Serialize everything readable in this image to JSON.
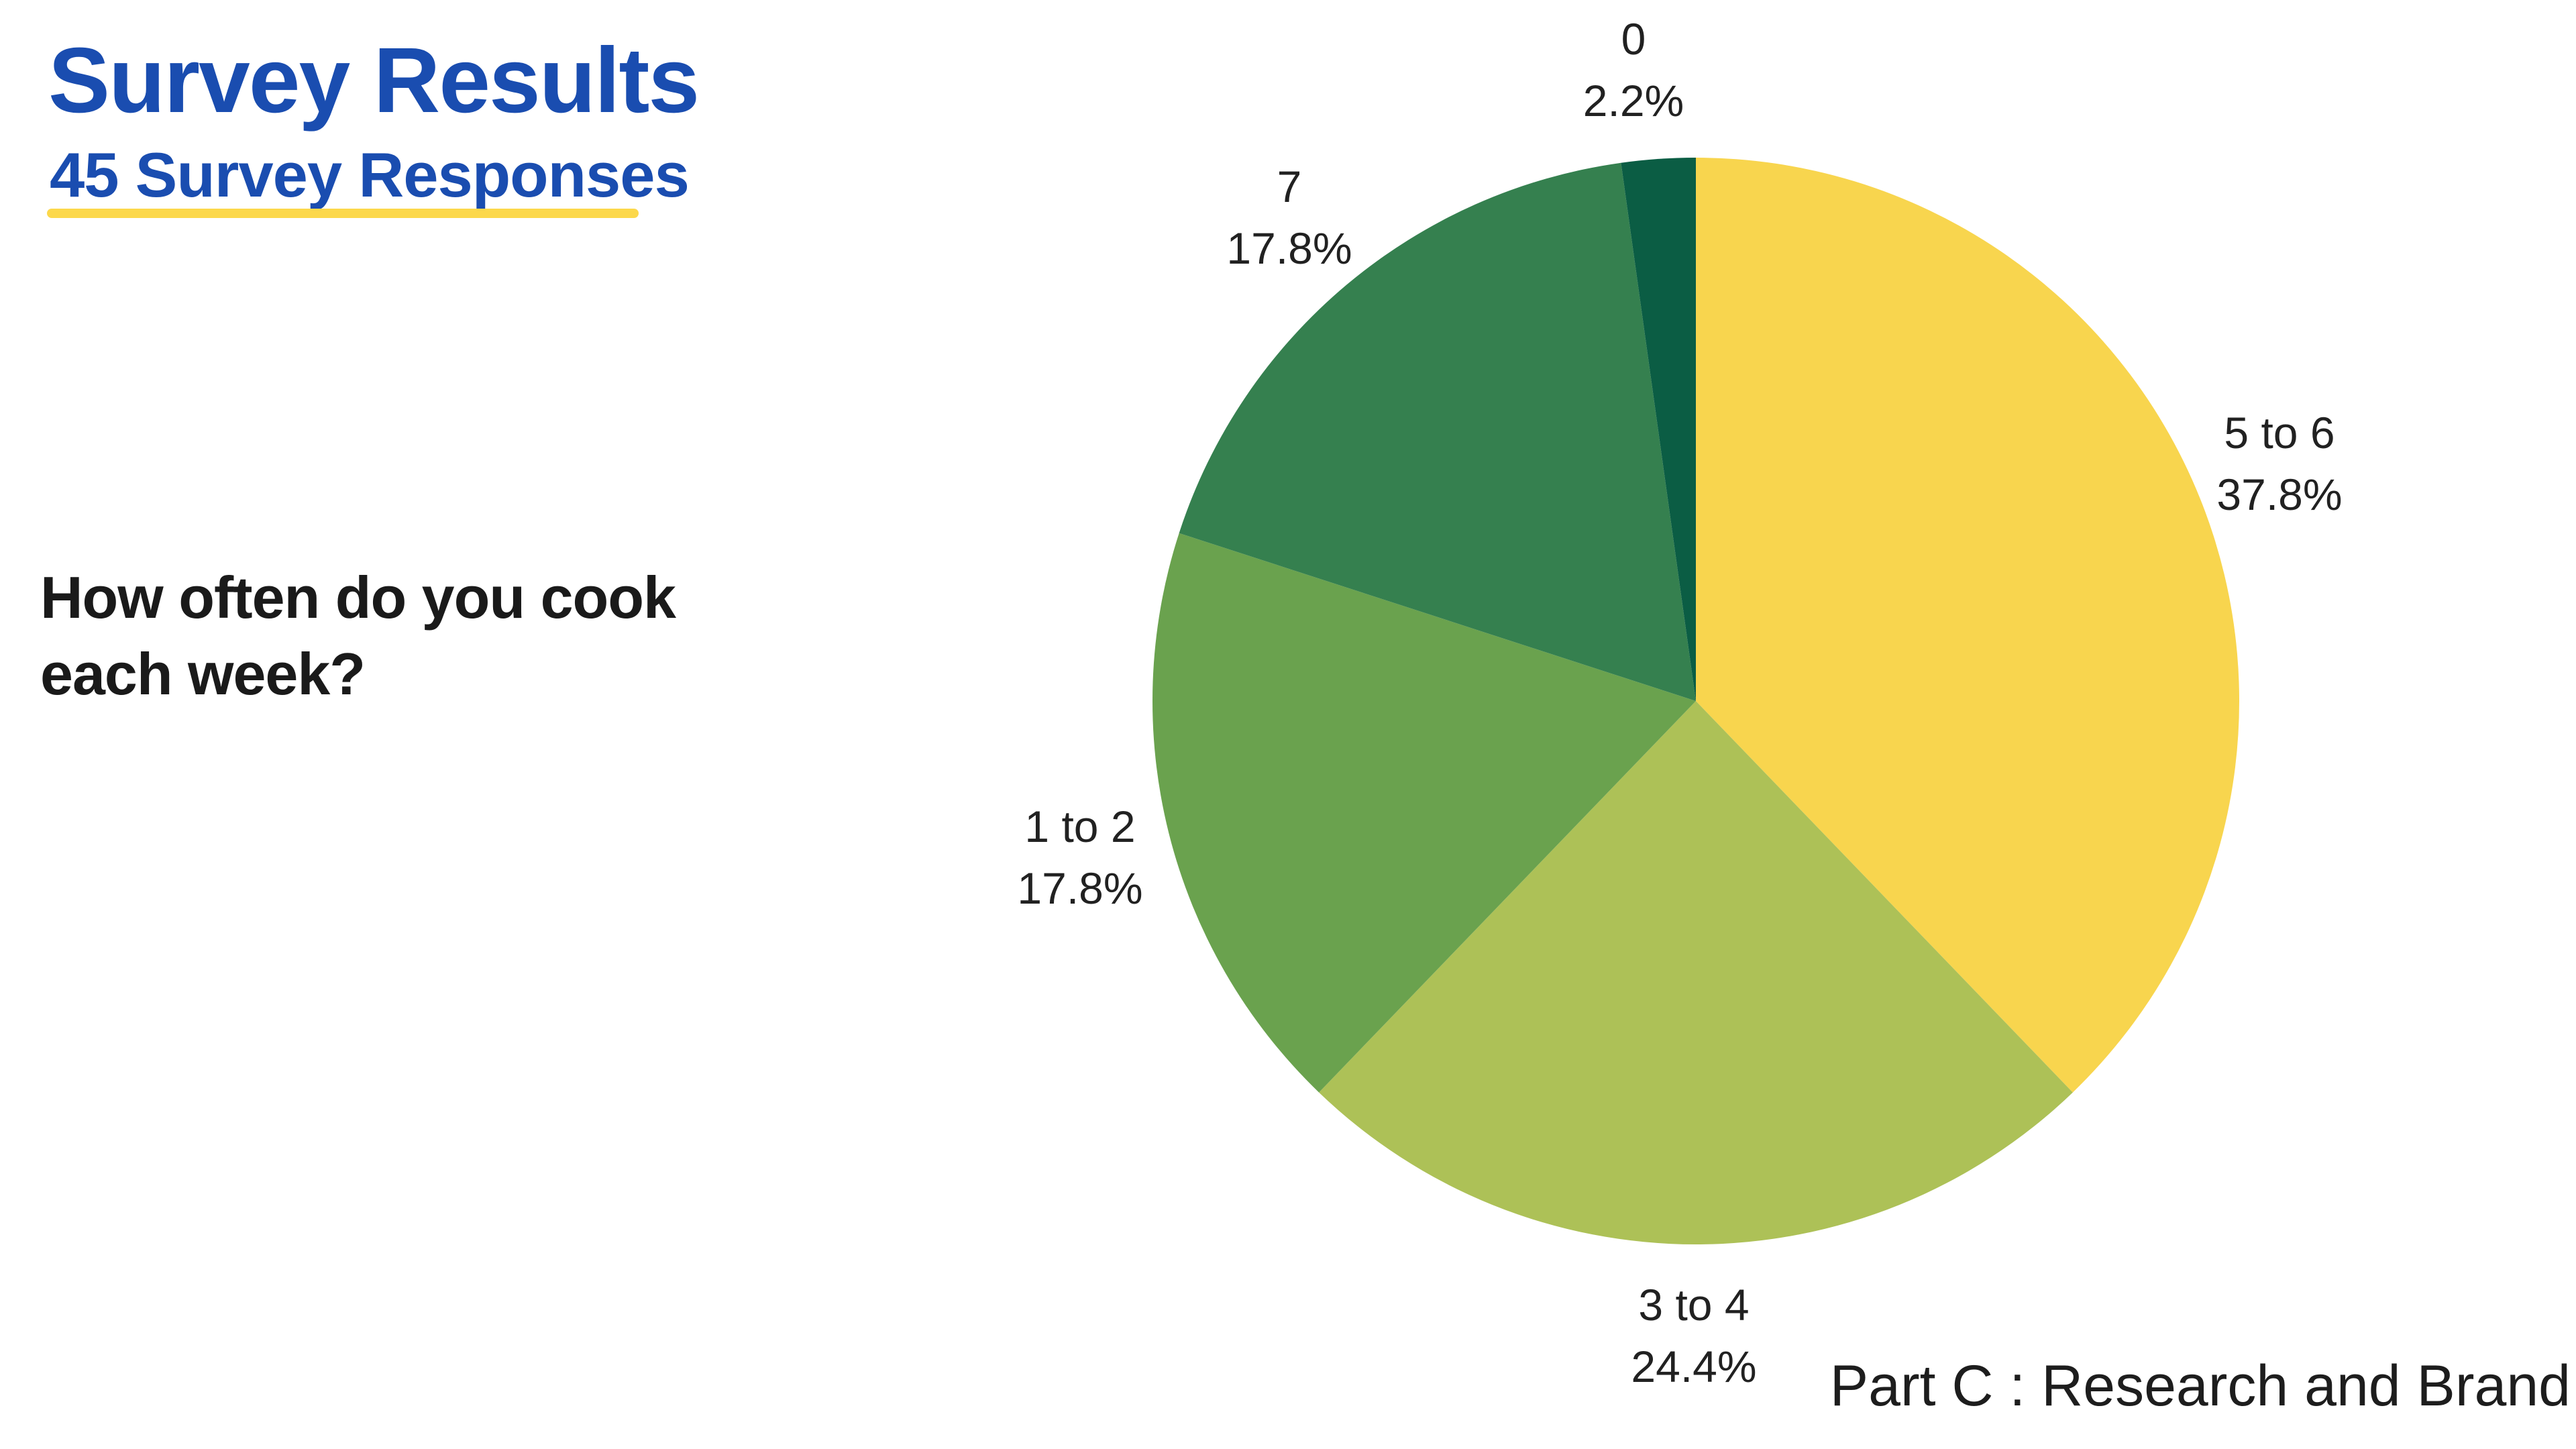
{
  "header": {
    "title": "Survey Results",
    "subtitle": "45 Survey Responses",
    "accent_text_color": "#1a4db0",
    "underline_color": "#fcd84b"
  },
  "question": {
    "line1": "How often do you cook",
    "line2": "each week?"
  },
  "footer": {
    "text": "Part C : Research and Brand"
  },
  "chart_data": {
    "type": "pie",
    "title": "How often do you cook each week?",
    "total_responses_text": "45 Survey Responses",
    "total_responses": 45,
    "start_angle_deg": 0,
    "direction": "clockwise",
    "legend_position": "none",
    "labels_outside": true,
    "slices": [
      {
        "label": "5 to 6",
        "percent": 37.8,
        "value_text": "37.8%",
        "color": "#f8d54e"
      },
      {
        "label": "3 to 4",
        "percent": 24.4,
        "value_text": "24.4%",
        "color": "#adc157"
      },
      {
        "label": "1 to 2",
        "percent": 17.8,
        "value_text": "17.8%",
        "color": "#6aa24e"
      },
      {
        "label": "7",
        "percent": 17.8,
        "value_text": "17.8%",
        "color": "#35804f"
      },
      {
        "label": "0",
        "percent": 2.2,
        "value_text": "2.2%",
        "color": "#0b5d44"
      }
    ]
  }
}
